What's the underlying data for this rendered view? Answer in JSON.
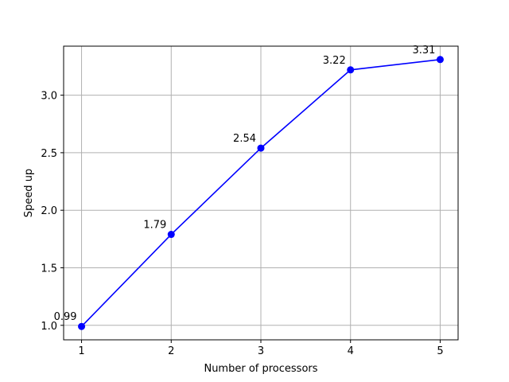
{
  "chart_data": {
    "type": "line",
    "title": "",
    "xlabel": "Number of processors",
    "ylabel": "Speed up",
    "x": [
      1,
      2,
      3,
      4,
      5
    ],
    "series": [
      {
        "values": [
          0.99,
          1.79,
          2.54,
          3.22,
          3.31
        ],
        "color": "#0000ff",
        "marker": "circle"
      }
    ],
    "data_labels": [
      "0.99",
      "1.79",
      "2.54",
      "3.22",
      "3.31"
    ],
    "xlim": [
      0.8,
      5.2
    ],
    "ylim": [
      0.874,
      3.426
    ],
    "xticks": [
      1,
      2,
      3,
      4,
      5
    ],
    "xtick_labels": [
      "1",
      "2",
      "3",
      "4",
      "5"
    ],
    "yticks": [
      1.0,
      1.5,
      2.0,
      2.5,
      3.0
    ],
    "ytick_labels": [
      "1.0",
      "1.5",
      "2.0",
      "2.5",
      "3.0"
    ],
    "grid": true,
    "legend": "none"
  }
}
